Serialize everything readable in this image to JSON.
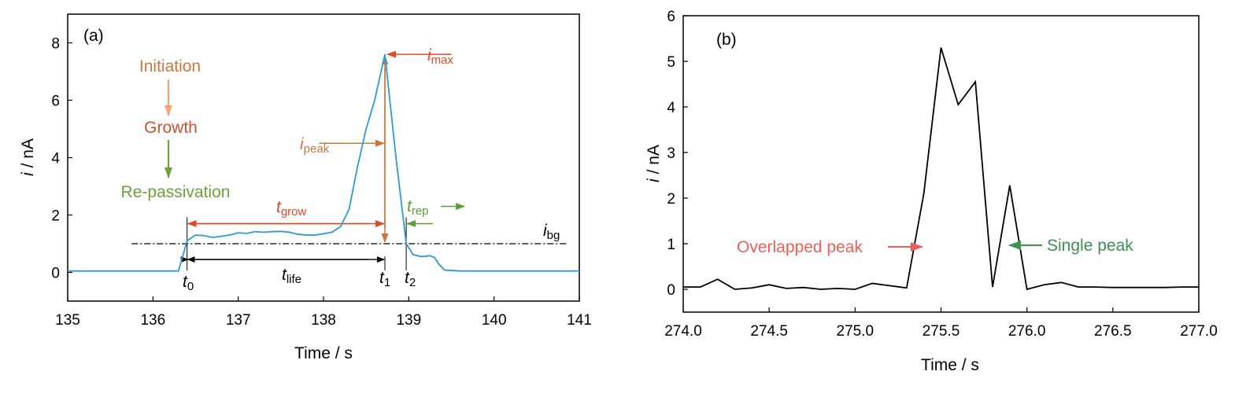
{
  "colors": {
    "line_a": "#2e9ccb",
    "line_b": "#000000",
    "initiation": "#c8783e",
    "initiation_arrow": "#f3a476",
    "growth": "#d0502c",
    "repassivation": "#6aa33e",
    "timing": "#c8783e",
    "red": "#e04a28",
    "green": "#5b9e36",
    "overlap": "#ee6055",
    "single": "#3f8f4f"
  },
  "chart_data": [
    {
      "type": "line",
      "panel_label": "(a)",
      "xlabel": "Time / s",
      "ylabel_italic": "i",
      "ylabel_rest": " / nA",
      "xlim": [
        135,
        141
      ],
      "ylim": [
        -1,
        9
      ],
      "xticks": [
        135,
        136,
        137,
        138,
        139,
        140,
        141
      ],
      "xtick_labels": [
        "135",
        "136",
        "137",
        "138",
        "139",
        "140",
        "141"
      ],
      "yticks": [
        0,
        2,
        4,
        6,
        8
      ],
      "ytick_labels": [
        "0",
        "2",
        "4",
        "6",
        "8"
      ],
      "series": [
        {
          "x": [
            135.0,
            136.0,
            136.3,
            136.4,
            136.5,
            136.6,
            136.7,
            136.8,
            136.9,
            137.0,
            137.1,
            137.2,
            137.3,
            137.4,
            137.5,
            137.6,
            137.7,
            137.8,
            137.9,
            138.0,
            138.1,
            138.2,
            138.3,
            138.4,
            138.5,
            138.6,
            138.72,
            138.85,
            138.97,
            139.05,
            139.15,
            139.25,
            139.3,
            139.35,
            139.42,
            139.6,
            140.0,
            141.0
          ],
          "y": [
            0.05,
            0.05,
            0.05,
            1.1,
            1.3,
            1.28,
            1.22,
            1.26,
            1.3,
            1.38,
            1.36,
            1.42,
            1.4,
            1.42,
            1.43,
            1.4,
            1.33,
            1.3,
            1.3,
            1.35,
            1.4,
            1.6,
            2.2,
            3.7,
            5.0,
            6.0,
            7.6,
            4.0,
            1.0,
            0.62,
            0.55,
            0.58,
            0.52,
            0.3,
            0.08,
            0.05,
            0.05,
            0.05
          ]
        }
      ],
      "ibg": 1.0,
      "annotations": {
        "initiation": "Initiation",
        "growth": "Growth",
        "repassivation": "Re-passivation",
        "i_max": "i",
        "i_max_sub": "max",
        "i_peak": "i",
        "i_peak_sub": "peak",
        "t_grow": "t",
        "t_grow_sub": "grow",
        "t_rep": "t",
        "t_rep_sub": "rep",
        "t_life": "t",
        "t_life_sub": "life",
        "i_bg": "i",
        "i_bg_sub": "bg",
        "t0": "t",
        "t0_sub": "0",
        "t1": "t",
        "t1_sub": "1",
        "t2": "t",
        "t2_sub": "2"
      },
      "markers": {
        "t0": 136.4,
        "t1": 138.72,
        "t2": 138.97,
        "i_max": 7.6,
        "i_peak": 4.5,
        "t_grow_level": 1.7,
        "t_life_level": 0.45
      }
    },
    {
      "type": "line",
      "panel_label": "(b)",
      "xlabel": "Time / s",
      "ylabel_italic": "i",
      "ylabel_rest": " / nA",
      "xlim": [
        274.0,
        277.0
      ],
      "ylim": [
        -0.5,
        6
      ],
      "xticks": [
        274.0,
        274.5,
        275.0,
        275.5,
        276.0,
        276.5,
        277.0
      ],
      "xtick_labels": [
        "274.0",
        "274.5",
        "275.0",
        "275.5",
        "276.0",
        "276.5",
        "277.0"
      ],
      "yticks": [
        0,
        1,
        2,
        3,
        4,
        5,
        6
      ],
      "ytick_labels": [
        "0",
        "1",
        "2",
        "3",
        "4",
        "5",
        "6"
      ],
      "series": [
        {
          "x": [
            274.0,
            274.1,
            274.2,
            274.3,
            274.4,
            274.5,
            274.6,
            274.7,
            274.8,
            274.9,
            275.0,
            275.1,
            275.2,
            275.3,
            275.4,
            275.5,
            275.6,
            275.7,
            275.8,
            275.9,
            276.0,
            276.1,
            276.2,
            276.3,
            276.4,
            276.5,
            276.6,
            276.7,
            276.8,
            276.9,
            277.0
          ],
          "y": [
            0.05,
            0.05,
            0.22,
            0.0,
            0.03,
            0.1,
            0.02,
            0.04,
            0.0,
            0.02,
            0.0,
            0.13,
            0.08,
            0.03,
            2.1,
            5.3,
            4.05,
            4.55,
            0.05,
            2.28,
            0.0,
            0.1,
            0.15,
            0.05,
            0.05,
            0.04,
            0.04,
            0.04,
            0.04,
            0.05,
            0.05
          ]
        }
      ],
      "annotations": {
        "overlapped": "Overlapped peak",
        "single": "Single peak"
      }
    }
  ]
}
